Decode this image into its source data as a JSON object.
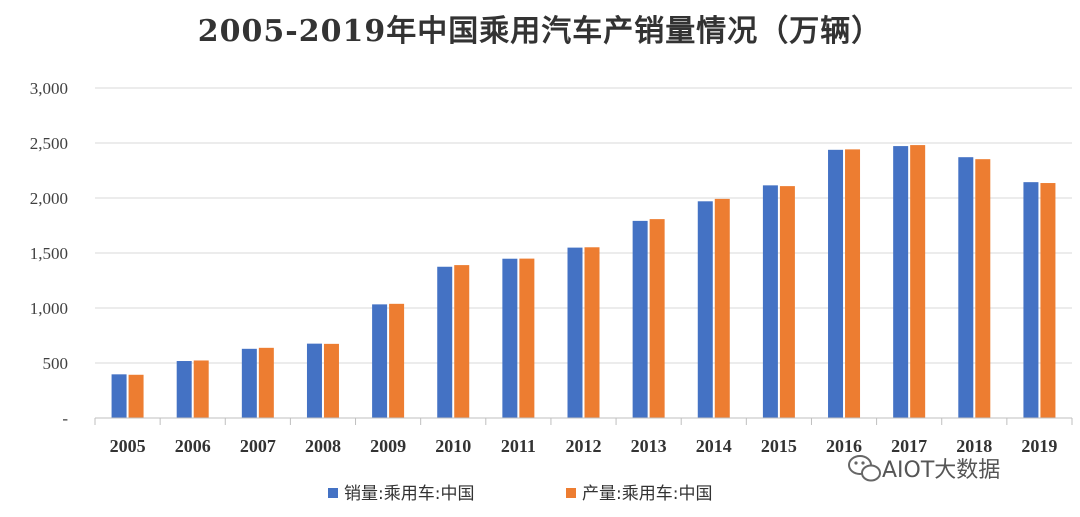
{
  "chart_data": {
    "type": "bar",
    "title": "2005-2019年中国乘用汽车产销量情况（万辆）",
    "categories": [
      "2005",
      "2006",
      "2007",
      "2008",
      "2009",
      "2010",
      "2011",
      "2012",
      "2013",
      "2014",
      "2015",
      "2016",
      "2017",
      "2018",
      "2019"
    ],
    "series": [
      {
        "name": "销量:乘用车:中国",
        "color": "#4472C4",
        "values": [
          397,
          518,
          629,
          676,
          1033,
          1375,
          1448,
          1549,
          1792,
          1970,
          2115,
          2438,
          2472,
          2371,
          2144
        ]
      },
      {
        "name": "产量:乘用车:中国",
        "color": "#ED7D31",
        "values": [
          393,
          523,
          638,
          674,
          1038,
          1390,
          1449,
          1552,
          1808,
          1992,
          2108,
          2442,
          2481,
          2353,
          2136
        ]
      }
    ],
    "y_ticks": [
      "-",
      "500",
      "1,000",
      "1,500",
      "2,000",
      "2,500",
      "3,000"
    ],
    "ylim": [
      0,
      3000
    ],
    "grid": true,
    "legend_position": "bottom"
  },
  "watermark": {
    "text": "AIOT大数据",
    "icon": "wechat-icon"
  }
}
